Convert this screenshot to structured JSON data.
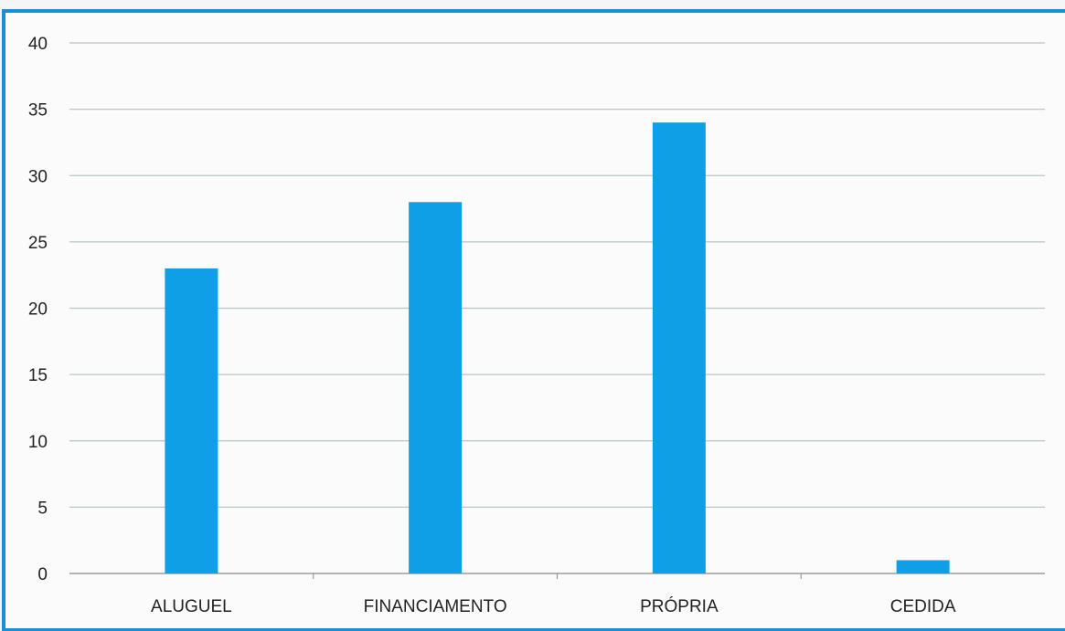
{
  "chart_data": {
    "type": "bar",
    "categories": [
      "ALUGUEL",
      "FINANCIAMENTO",
      "PRÓPRIA",
      "CEDIDA"
    ],
    "values": [
      23,
      28,
      34,
      1
    ],
    "title": "",
    "xlabel": "",
    "ylabel": "",
    "ylim": [
      0,
      40
    ],
    "yticks": [
      "0",
      "5",
      "10",
      "15",
      "20",
      "25",
      "30",
      "35",
      "40"
    ],
    "grid": true,
    "legend": "none",
    "bar_color": "#0f9fe6"
  }
}
